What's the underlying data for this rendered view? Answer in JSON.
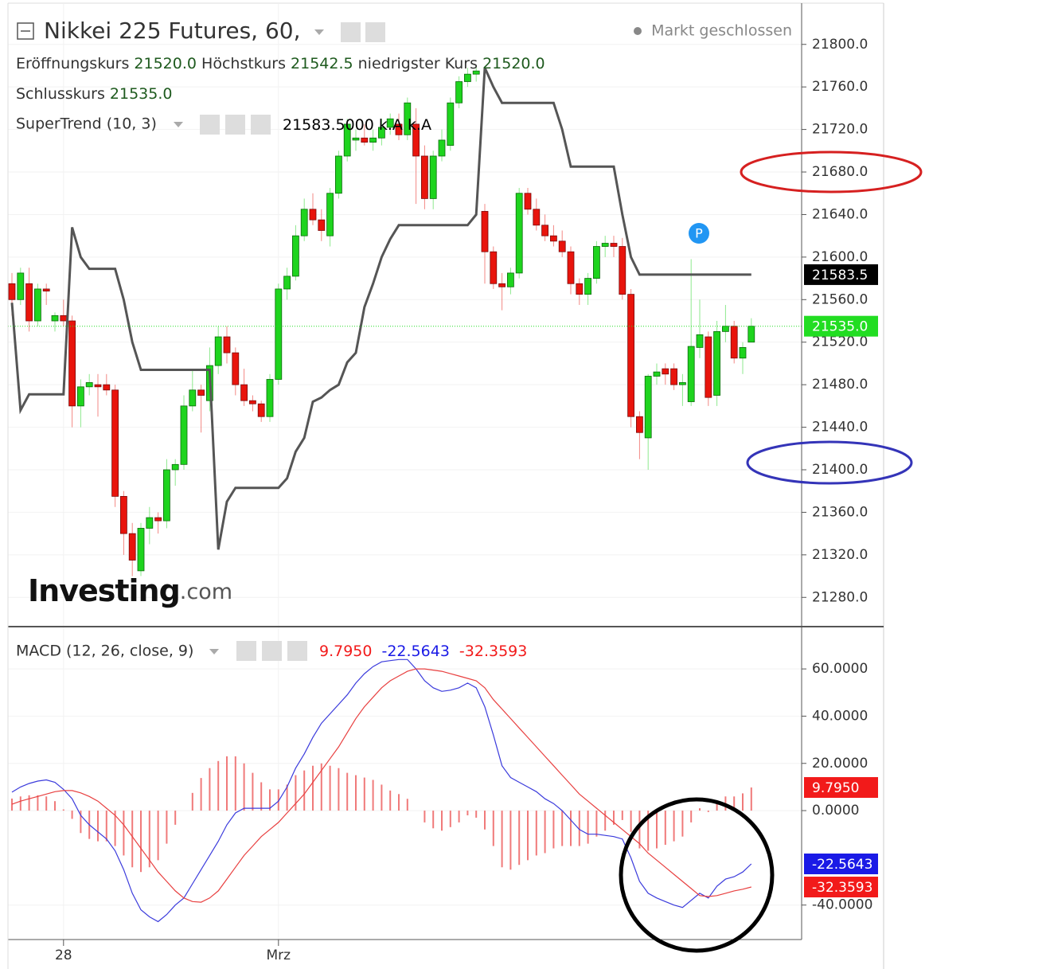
{
  "chart_data": [
    {
      "type": "candlestick",
      "title": "Nikkei 225 Futures, 60,",
      "status": "Markt geschlossen",
      "ohlc_legend": [
        {
          "label": "Eröffnungskurs",
          "value": "21520.0"
        },
        {
          "label": "Höchstkurs",
          "value": "21542.5"
        },
        {
          "label": "niedrigster Kurs",
          "value": "21520.0"
        },
        {
          "label": "Schlusskurs",
          "value": "21535.0"
        }
      ],
      "legend_values": [
        "21583.5000",
        "k.A",
        "k.A"
      ],
      "watermark": [
        "Investing",
        ".com"
      ],
      "marker": "P",
      "up_color": "#1ed41e",
      "down_color": "#e8140c",
      "ylim": [
        21254,
        21838
      ],
      "yticks": [
        {
          "value": 21280,
          "label": "21280.0"
        },
        {
          "value": 21320,
          "label": "21320.0"
        },
        {
          "value": 21360,
          "label": "21360.0"
        },
        {
          "value": 21400,
          "label": "21400.0"
        },
        {
          "value": 21440,
          "label": "21440.0"
        },
        {
          "value": 21480,
          "label": "21480.0"
        },
        {
          "value": 21520,
          "label": "21520.0"
        },
        {
          "value": 21560,
          "label": "21560.0"
        },
        {
          "value": 21600,
          "label": "21600.0"
        },
        {
          "value": 21640,
          "label": "21640.0"
        },
        {
          "value": 21680,
          "label": "21680.0"
        },
        {
          "value": 21720,
          "label": "21720.0"
        },
        {
          "value": 21760,
          "label": "21760.0"
        },
        {
          "value": 21800,
          "label": "21800.0"
        }
      ],
      "xticks": [
        {
          "value": 6,
          "label": "28"
        },
        {
          "value": 31,
          "label": "Mrz"
        }
      ],
      "ohlc": [
        [
          21575,
          21585,
          21545,
          21560
        ],
        [
          21560,
          21590,
          21555,
          21585
        ],
        [
          21575,
          21590,
          21530,
          21540
        ],
        [
          21540,
          21575,
          21535,
          21570
        ],
        [
          21570,
          21575,
          21555,
          21568
        ],
        [
          21540,
          21548,
          21530,
          21545
        ],
        [
          21545,
          21560,
          21535,
          21540
        ],
        [
          21540,
          21545,
          21440,
          21460
        ],
        [
          21460,
          21485,
          21440,
          21478
        ],
        [
          21478,
          21490,
          21470,
          21482
        ],
        [
          21480,
          21490,
          21450,
          21478
        ],
        [
          21480,
          21490,
          21470,
          21475
        ],
        [
          21475,
          21480,
          21365,
          21375
        ],
        [
          21375,
          21380,
          21320,
          21340
        ],
        [
          21340,
          21350,
          21300,
          21315
        ],
        [
          21305,
          21350,
          21300,
          21345
        ],
        [
          21345,
          21365,
          21330,
          21355
        ],
        [
          21355,
          21360,
          21340,
          21352
        ],
        [
          21352,
          21410,
          21345,
          21400
        ],
        [
          21400,
          21410,
          21385,
          21405
        ],
        [
          21405,
          21470,
          21400,
          21460
        ],
        [
          21460,
          21495,
          21455,
          21475
        ],
        [
          21475,
          21480,
          21435,
          21470
        ],
        [
          21465,
          21515,
          21455,
          21498
        ],
        [
          21498,
          21535,
          21490,
          21525
        ],
        [
          21525,
          21535,
          21500,
          21510
        ],
        [
          21510,
          21515,
          21470,
          21480
        ],
        [
          21480,
          21495,
          21460,
          21465
        ],
        [
          21465,
          21470,
          21455,
          21462
        ],
        [
          21462,
          21465,
          21445,
          21450
        ],
        [
          21450,
          21490,
          21445,
          21485
        ],
        [
          21485,
          21575,
          21480,
          21570
        ],
        [
          21570,
          21590,
          21560,
          21582
        ],
        [
          21582,
          21630,
          21578,
          21620
        ],
        [
          21620,
          21655,
          21615,
          21645
        ],
        [
          21645,
          21660,
          21630,
          21635
        ],
        [
          21635,
          21645,
          21615,
          21625
        ],
        [
          21620,
          21665,
          21610,
          21660
        ],
        [
          21660,
          21700,
          21655,
          21695
        ],
        [
          21695,
          21730,
          21690,
          21725
        ],
        [
          21710,
          21720,
          21700,
          21712
        ],
        [
          21712,
          21725,
          21705,
          21708
        ],
        [
          21708,
          21720,
          21700,
          21712
        ],
        [
          21712,
          21730,
          21705,
          21722
        ],
        [
          21722,
          21735,
          21715,
          21730
        ],
        [
          21725,
          21735,
          21710,
          21715
        ],
        [
          21715,
          21750,
          21710,
          21745
        ],
        [
          21725,
          21740,
          21650,
          21695
        ],
        [
          21695,
          21705,
          21645,
          21655
        ],
        [
          21655,
          21700,
          21645,
          21695
        ],
        [
          21695,
          21720,
          21690,
          21710
        ],
        [
          21705,
          21750,
          21700,
          21745
        ],
        [
          21745,
          21770,
          21740,
          21765
        ],
        [
          21765,
          21778,
          21760,
          21772
        ],
        [
          21772,
          21780,
          21765,
          21775
        ],
        [
          21643,
          21650,
          21575,
          21605
        ],
        [
          21605,
          21610,
          21570,
          21575
        ],
        [
          21575,
          21585,
          21550,
          21572
        ],
        [
          21572,
          21590,
          21565,
          21585
        ],
        [
          21585,
          21665,
          21580,
          21660
        ],
        [
          21660,
          21665,
          21640,
          21645
        ],
        [
          21645,
          21655,
          21625,
          21630
        ],
        [
          21630,
          21640,
          21615,
          21620
        ],
        [
          21620,
          21630,
          21610,
          21615
        ],
        [
          21615,
          21625,
          21600,
          21605
        ],
        [
          21605,
          21610,
          21565,
          21575
        ],
        [
          21575,
          21580,
          21555,
          21565
        ],
        [
          21565,
          21585,
          21555,
          21580
        ],
        [
          21580,
          21615,
          21575,
          21610
        ],
        [
          21610,
          21620,
          21600,
          21613
        ],
        [
          21613,
          21620,
          21600,
          21610
        ],
        [
          21610,
          21618,
          21560,
          21565
        ],
        [
          21565,
          21570,
          21440,
          21450
        ],
        [
          21450,
          21455,
          21410,
          21435
        ],
        [
          21430,
          21490,
          21400,
          21488
        ],
        [
          21488,
          21500,
          21480,
          21492
        ],
        [
          21495,
          21500,
          21480,
          21490
        ],
        [
          21495,
          21500,
          21475,
          21480
        ],
        [
          21480,
          21490,
          21460,
          21482
        ],
        [
          21464,
          21598,
          21460,
          21516
        ],
        [
          21515,
          21560,
          21505,
          21527
        ],
        [
          21525,
          21530,
          21460,
          21468
        ],
        [
          21470,
          21540,
          21460,
          21530
        ],
        [
          21530,
          21555,
          21520,
          21535
        ],
        [
          21535,
          21540,
          21500,
          21505
        ],
        [
          21505,
          21520,
          21490,
          21515
        ],
        [
          21520,
          21542.5,
          21520,
          21535
        ]
      ],
      "series": [
        {
          "name": "SuperTrend (10, 3)",
          "color": "#555555",
          "values": [
            21557,
            21456,
            21471,
            21471,
            21471,
            21471,
            21471,
            21628,
            21600,
            21589,
            21589,
            21589,
            21589,
            21560,
            21520,
            21494,
            21494,
            21494,
            21494,
            21494,
            21494,
            21494,
            21494,
            21494,
            21325,
            21370,
            21383,
            21383,
            21383,
            21383,
            21383,
            21383,
            21392,
            21417,
            21430,
            21464,
            21468,
            21475,
            21480,
            21501,
            21510,
            21553,
            21575,
            21600,
            21617,
            21630,
            21630,
            21630,
            21630,
            21630,
            21630,
            21630,
            21630,
            21630,
            21640,
            21778,
            21760,
            21745,
            21745,
            21745,
            21745,
            21745,
            21745,
            21745,
            21720,
            21685,
            21685,
            21685,
            21685,
            21685,
            21685,
            21640,
            21600,
            21583.5,
            21583.5,
            21583.5,
            21583.5,
            21583.5,
            21583.5,
            21583.5,
            21583.5,
            21583.5,
            21583.5,
            21583.5,
            21583.5,
            21583.5,
            21583.5
          ]
        }
      ],
      "last_labels": [
        {
          "value": 21583.5,
          "label": "21583.5",
          "color": "#000000"
        },
        {
          "value": 21535,
          "label": "21535.0",
          "color": "#22dd22"
        }
      ]
    },
    {
      "type": "macd",
      "title": "MACD (12, 26, close, 9)",
      "ylim": [
        -54.6,
        76.9
      ],
      "yticks": [
        {
          "value": 60,
          "label": "60.0000"
        },
        {
          "value": 40,
          "label": "40.0000"
        },
        {
          "value": 20,
          "label": "20.0000"
        },
        {
          "value": 0,
          "label": "0.0000"
        },
        {
          "value": -40,
          "label": "-40.0000"
        }
      ],
      "series": [
        {
          "color": "#3b3bdc",
          "values": [
            7.8,
            10,
            11.5,
            12.5,
            13,
            12,
            9,
            5,
            -2,
            -6,
            -9,
            -12,
            -17,
            -25,
            -35,
            -42,
            -45,
            -47,
            -44,
            -40,
            -37,
            -31,
            -25,
            -19,
            -13,
            -6,
            -1,
            1,
            1,
            1,
            1,
            4,
            10,
            18,
            24,
            31,
            37,
            41,
            45,
            49,
            54,
            58,
            61,
            63,
            63.5,
            64,
            64,
            60,
            55,
            52,
            50.5,
            51,
            52,
            54,
            52,
            44,
            32,
            19,
            14,
            12,
            10,
            8,
            5,
            3,
            0,
            -4,
            -8,
            -10,
            -10,
            -10.5,
            -11,
            -12,
            -20,
            -30,
            -35,
            -37,
            -38.5,
            -40,
            -41,
            -38,
            -35,
            -37,
            -32,
            -29,
            -28,
            -26,
            -22.5643
          ]
        },
        {
          "color": "#e84040",
          "values": [
            2.7,
            4,
            5,
            6,
            7,
            8,
            8.5,
            8.5,
            7.5,
            6,
            4,
            1,
            -2,
            -6,
            -11,
            -16,
            -21,
            -26,
            -30,
            -34,
            -37,
            -38.5,
            -38.8,
            -37,
            -34,
            -29,
            -24,
            -19,
            -15,
            -11,
            -8,
            -5,
            -1,
            3,
            7,
            12,
            17,
            22,
            27,
            33,
            39,
            44,
            48,
            52,
            55,
            57,
            59,
            60,
            60,
            59.5,
            59,
            58,
            57,
            56,
            55,
            52,
            47,
            43,
            39,
            35,
            31,
            27,
            23,
            19,
            15,
            11,
            7,
            4,
            1,
            -2,
            -5,
            -8,
            -11,
            -14,
            -18,
            -21,
            -24,
            -27,
            -30,
            -33,
            -36,
            -36.4,
            -36,
            -35,
            -34,
            -33.3,
            -32.3593
          ]
        }
      ],
      "histogram": {
        "color": "#f07a7a",
        "values": [
          5.1,
          6,
          6.5,
          6.5,
          6,
          4,
          0.5,
          -3.5,
          -9.5,
          -12,
          -13,
          -13,
          -15,
          -19,
          -24,
          -26,
          -24,
          -21,
          -14,
          -6,
          0,
          7.5,
          13.8,
          18,
          21,
          23,
          23,
          20,
          16,
          12,
          9,
          9,
          11,
          15,
          17,
          19,
          20,
          19,
          18,
          16,
          15,
          14,
          13,
          11,
          8.5,
          7,
          5,
          0,
          -5,
          -7.5,
          -8.5,
          -7,
          -5,
          -2,
          -3,
          -8,
          -15,
          -24,
          -25,
          -23,
          -21,
          -19,
          -18,
          -16,
          -15,
          -15,
          -15,
          -14,
          -11,
          -8.5,
          -6,
          -4,
          -9,
          -16,
          -17,
          -16,
          -14.5,
          -13,
          -11,
          -5,
          1,
          -0.6,
          4,
          6,
          6,
          7.3,
          9.795
        ]
      },
      "last_labels": [
        {
          "value": 9.795,
          "label": "9.7950",
          "color": "#f21a1a"
        },
        {
          "value": -22.5643,
          "label": "-22.5643",
          "color": "#1a1ae6"
        },
        {
          "value": -32.3593,
          "label": "-32.3593",
          "color": "#f21a1a"
        }
      ]
    }
  ]
}
